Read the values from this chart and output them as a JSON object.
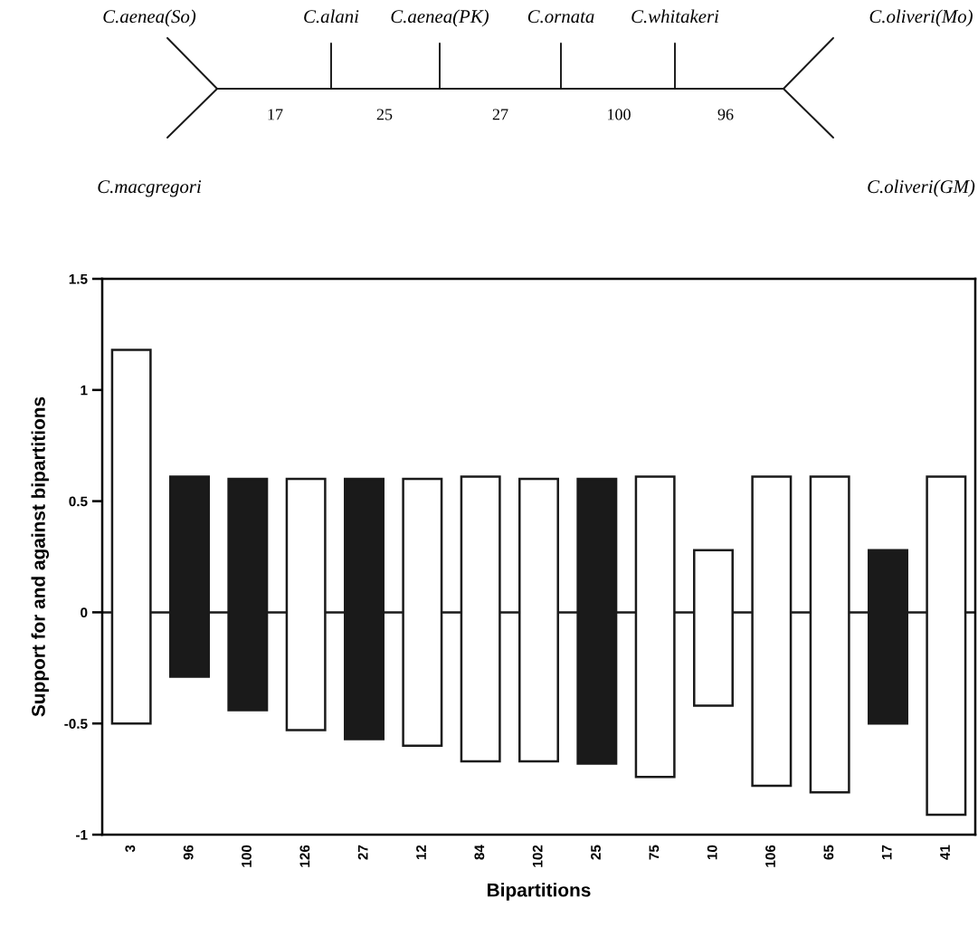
{
  "chart_data": [
    {
      "type": "other",
      "annotations": [
        "C.aenea(So)",
        "C.macgregori",
        "C.alani",
        "C.aenea(PK)",
        "C.ornata",
        "C.whitakeri",
        "C.oliveri(Mo)",
        "C.oliveri(GM)",
        "17",
        "25",
        "27",
        "100",
        "96"
      ]
    },
    {
      "type": "bar",
      "xlabel": "Bipartitions",
      "ylabel": "Support for and against bipartitions",
      "categories": [
        "3",
        "96",
        "100",
        "126",
        "27",
        "12",
        "84",
        "102",
        "25",
        "75",
        "10",
        "106",
        "65",
        "17",
        "41"
      ],
      "base": [
        -0.5,
        -0.29,
        -0.44,
        -0.53,
        -0.57,
        -0.6,
        -0.67,
        -0.67,
        -0.68,
        -0.74,
        -0.42,
        -0.78,
        -0.81,
        -0.5,
        -0.91
      ],
      "values": [
        1.68,
        0.9,
        1.04,
        1.13,
        1.17,
        1.2,
        1.28,
        1.27,
        1.28,
        1.35,
        0.7,
        1.39,
        1.42,
        0.78,
        1.52
      ],
      "colors": [
        "#ffffff",
        "#1a1a1a",
        "#1a1a1a",
        "#ffffff",
        "#1a1a1a",
        "#ffffff",
        "#ffffff",
        "#ffffff",
        "#1a1a1a",
        "#ffffff",
        "#ffffff",
        "#ffffff",
        "#ffffff",
        "#1a1a1a",
        "#ffffff"
      ],
      "ylim": [
        -1,
        1.5
      ],
      "yticks": [
        {
          "value": -1,
          "label": "-1"
        },
        {
          "value": -0.5,
          "label": "-0.5"
        },
        0,
        0.5,
        1,
        1.5
      ],
      "ref_lines": [
        {
          "axis": "y",
          "value": 0,
          "color": "#1a1a1a"
        }
      ],
      "grid": false,
      "legend": false
    }
  ]
}
